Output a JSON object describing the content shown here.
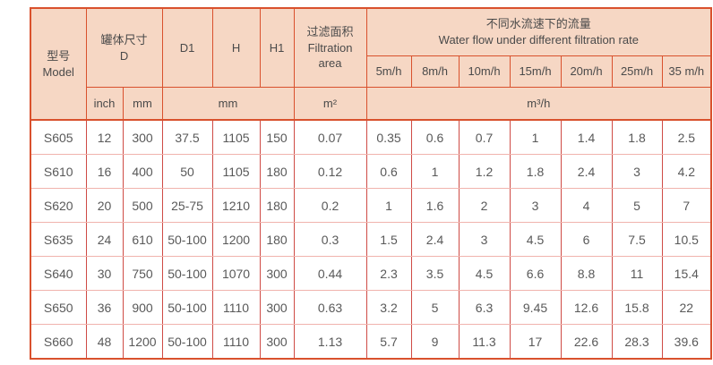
{
  "colors": {
    "header_bg": "#f6d7c4",
    "border_strong": "#d9512d",
    "border_column": "#cf4b45",
    "border_row": "#f0b3ad",
    "header_text": "#4a4a4a",
    "body_text": "#595959"
  },
  "table": {
    "header": {
      "model_cn": "型号",
      "model_en": "Model",
      "tank_cn": "罐体尺寸",
      "tank_en": "D",
      "d1": "D1",
      "h": "H",
      "h1": "H1",
      "filtration_cn": "过滤面积",
      "filtration_en": "Filtration area",
      "waterflow_cn": "不同水流速下的流量",
      "waterflow_en": "Water flow under different filtration rate",
      "rates": [
        "5m/h",
        "8m/h",
        "10m/h",
        "15m/h",
        "20m/h",
        "25m/h",
        "35 m/h"
      ],
      "unit_inch": "inch",
      "unit_mm": "mm",
      "unit_mm_group": "mm",
      "unit_area": "m²",
      "unit_flow": "m³/h"
    },
    "rows": [
      {
        "model": "S605",
        "inch": "12",
        "mm": "300",
        "d1": "37.5",
        "h": "1105",
        "h1": "150",
        "area": "0.07",
        "flows": [
          "0.35",
          "0.6",
          "0.7",
          "1",
          "1.4",
          "1.8",
          "2.5"
        ]
      },
      {
        "model": "S610",
        "inch": "16",
        "mm": "400",
        "d1": "50",
        "h": "1105",
        "h1": "180",
        "area": "0.12",
        "flows": [
          "0.6",
          "1",
          "1.2",
          "1.8",
          "2.4",
          "3",
          "4.2"
        ]
      },
      {
        "model": "S620",
        "inch": "20",
        "mm": "500",
        "d1": "25-75",
        "h": "1210",
        "h1": "180",
        "area": "0.2",
        "flows": [
          "1",
          "1.6",
          "2",
          "3",
          "4",
          "5",
          "7"
        ]
      },
      {
        "model": "S635",
        "inch": "24",
        "mm": "610",
        "d1": "50-100",
        "h": "1200",
        "h1": "180",
        "area": "0.3",
        "flows": [
          "1.5",
          "2.4",
          "3",
          "4.5",
          "6",
          "7.5",
          "10.5"
        ]
      },
      {
        "model": "S640",
        "inch": "30",
        "mm": "750",
        "d1": "50-100",
        "h": "1070",
        "h1": "300",
        "area": "0.44",
        "flows": [
          "2.3",
          "3.5",
          "4.5",
          "6.6",
          "8.8",
          "11",
          "15.4"
        ]
      },
      {
        "model": "S650",
        "inch": "36",
        "mm": "900",
        "d1": "50-100",
        "h": "1110",
        "h1": "300",
        "area": "0.63",
        "flows": [
          "3.2",
          "5",
          "6.3",
          "9.45",
          "12.6",
          "15.8",
          "22"
        ]
      },
      {
        "model": "S660",
        "inch": "48",
        "mm": "1200",
        "d1": "50-100",
        "h": "1110",
        "h1": "300",
        "area": "1.13",
        "flows": [
          "5.7",
          "9",
          "11.3",
          "17",
          "22.6",
          "28.3",
          "39.6"
        ]
      }
    ]
  }
}
